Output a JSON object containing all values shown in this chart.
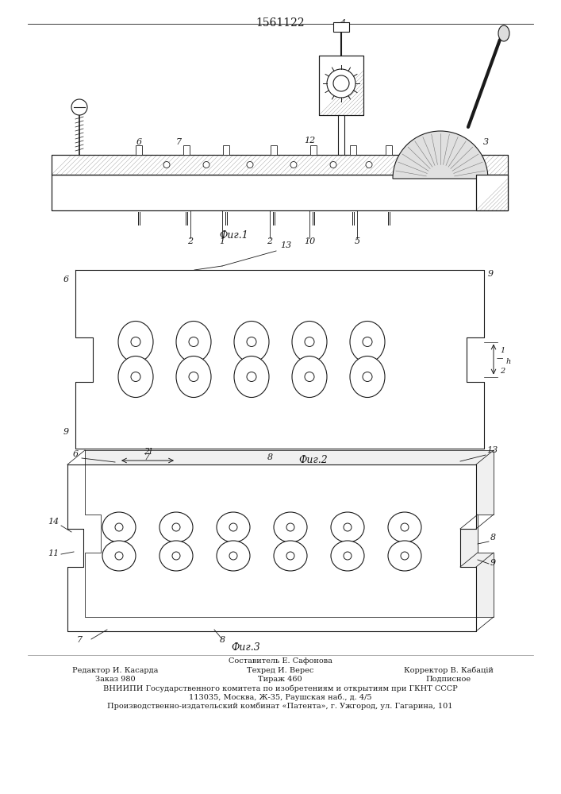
{
  "patent_number": "1561122",
  "fig1_label": "Фиг.1",
  "fig2_label": "Фиг.2",
  "fig3_label": "Фиг.3",
  "footer_line1": "Составитель Е. Сафонова",
  "footer_line2_left": "Редактор И. Касарда",
  "footer_line2_mid": "Техред И. Верес",
  "footer_line2_right": "Корректор В. Кабацій",
  "footer_line3_left": "Заказ 980",
  "footer_line3_mid": "Тираж 460",
  "footer_line3_right": "Подписное",
  "footer_line4": "ВНИИПИ Государственного комитета по изобретениям и открытиям при ГКНТ СССР",
  "footer_line5": "113035, Москва, Ж-35, Раушская наб., д. 4/5",
  "footer_line6": "Производственно-издательский комбинат «Патента», г. Ужгород, ул. Гагарина, 101",
  "line_color": "#1a1a1a",
  "hatch_color": "#888888"
}
